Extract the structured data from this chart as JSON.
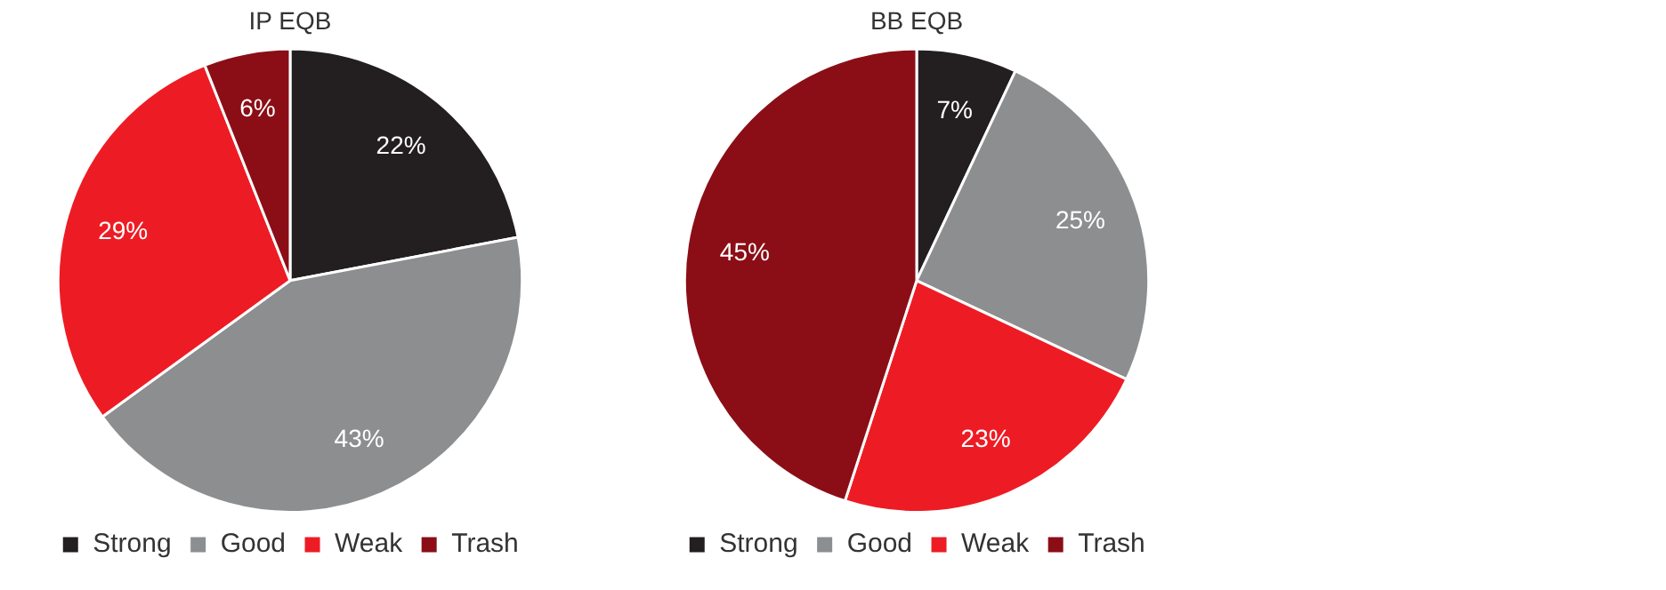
{
  "chart_data": [
    {
      "type": "pie",
      "title": "IP EQB",
      "categories": [
        "Strong",
        "Good",
        "Weak",
        "Trash"
      ],
      "values": [
        22,
        43,
        29,
        6
      ],
      "colors": [
        "#231f20",
        "#8d8e90",
        "#ed1c24",
        "#8b0e16"
      ],
      "value_labels": [
        "22%",
        "43%",
        "29%",
        "6%"
      ],
      "legend": "bottom"
    },
    {
      "type": "pie",
      "title": "BB EQB",
      "categories": [
        "Strong",
        "Good",
        "Weak",
        "Trash"
      ],
      "values": [
        7,
        25,
        23,
        45
      ],
      "colors": [
        "#231f20",
        "#8d8e90",
        "#ed1c24",
        "#8b0e16"
      ],
      "value_labels": [
        "7%",
        "25%",
        "23%",
        "45%"
      ],
      "legend": "bottom"
    }
  ]
}
